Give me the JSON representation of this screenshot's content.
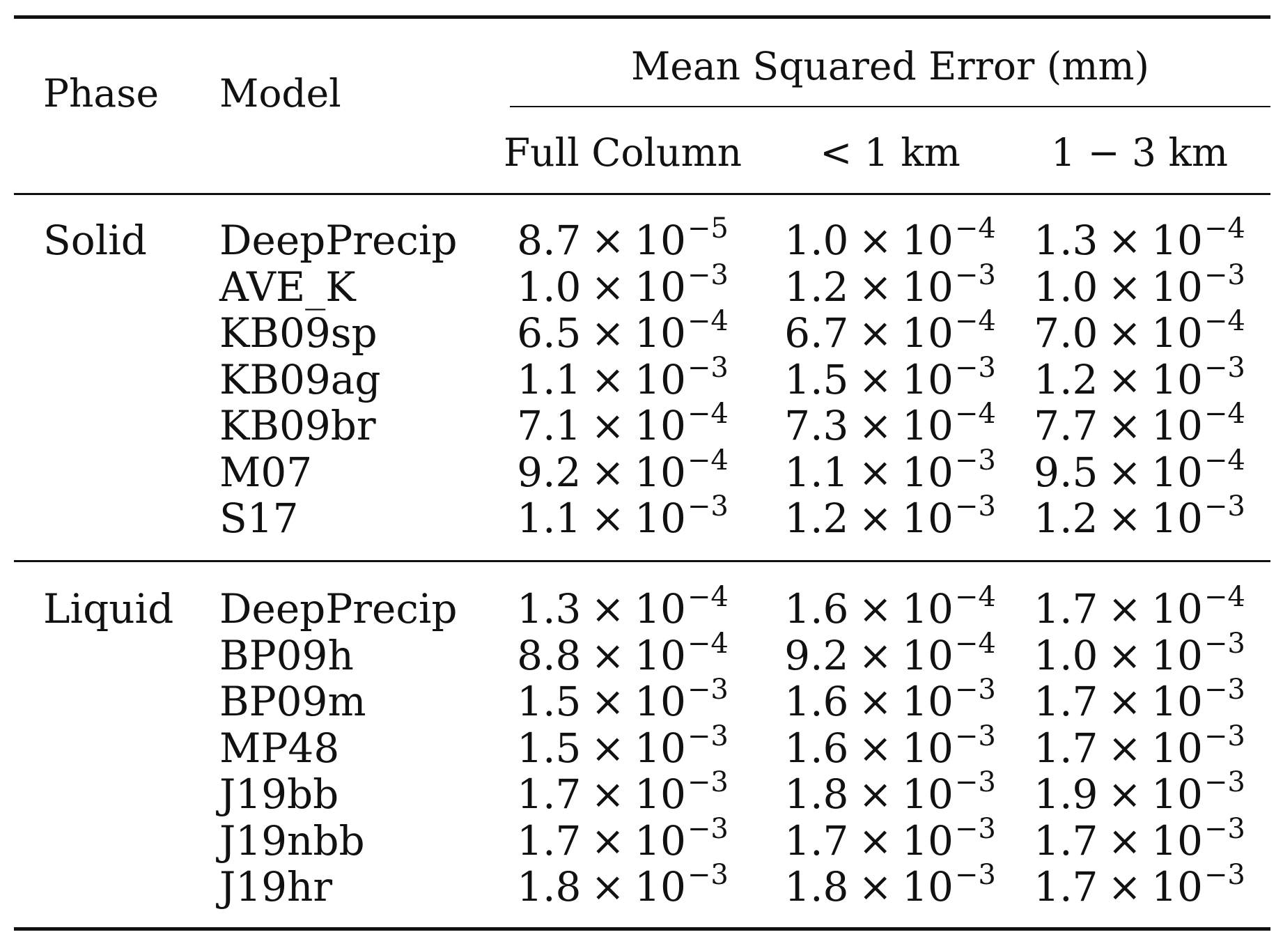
{
  "header": {
    "phase": "Phase",
    "model": "Model",
    "group": "Mean Squared Error (mm)",
    "columns": [
      "Full Column",
      "< 1 km",
      "1 − 3 km"
    ]
  },
  "groups": [
    {
      "phase": "Solid",
      "rows": [
        {
          "model": "DeepPrecip",
          "values": [
            {
              "m": "8.7",
              "e": "−5"
            },
            {
              "m": "1.0",
              "e": "−4"
            },
            {
              "m": "1.3",
              "e": "−4"
            }
          ]
        },
        {
          "model": "AVE_K",
          "values": [
            {
              "m": "1.0",
              "e": "−3"
            },
            {
              "m": "1.2",
              "e": "−3"
            },
            {
              "m": "1.0",
              "e": "−3"
            }
          ]
        },
        {
          "model": "KB09sp",
          "values": [
            {
              "m": "6.5",
              "e": "−4"
            },
            {
              "m": "6.7",
              "e": "−4"
            },
            {
              "m": "7.0",
              "e": "−4"
            }
          ]
        },
        {
          "model": "KB09ag",
          "values": [
            {
              "m": "1.1",
              "e": "−3"
            },
            {
              "m": "1.5",
              "e": "−3"
            },
            {
              "m": "1.2",
              "e": "−3"
            }
          ]
        },
        {
          "model": "KB09br",
          "values": [
            {
              "m": "7.1",
              "e": "−4"
            },
            {
              "m": "7.3",
              "e": "−4"
            },
            {
              "m": "7.7",
              "e": "−4"
            }
          ]
        },
        {
          "model": "M07",
          "values": [
            {
              "m": "9.2",
              "e": "−4"
            },
            {
              "m": "1.1",
              "e": "−3"
            },
            {
              "m": "9.5",
              "e": "−4"
            }
          ]
        },
        {
          "model": "S17",
          "values": [
            {
              "m": "1.1",
              "e": "−3"
            },
            {
              "m": "1.2",
              "e": "−3"
            },
            {
              "m": "1.2",
              "e": "−3"
            }
          ]
        }
      ]
    },
    {
      "phase": "Liquid",
      "rows": [
        {
          "model": "DeepPrecip",
          "values": [
            {
              "m": "1.3",
              "e": "−4"
            },
            {
              "m": "1.6",
              "e": "−4"
            },
            {
              "m": "1.7",
              "e": "−4"
            }
          ]
        },
        {
          "model": "BP09h",
          "values": [
            {
              "m": "8.8",
              "e": "−4"
            },
            {
              "m": "9.2",
              "e": "−4"
            },
            {
              "m": "1.0",
              "e": "−3"
            }
          ]
        },
        {
          "model": "BP09m",
          "values": [
            {
              "m": "1.5",
              "e": "−3"
            },
            {
              "m": "1.6",
              "e": "−3"
            },
            {
              "m": "1.7",
              "e": "−3"
            }
          ]
        },
        {
          "model": "MP48",
          "values": [
            {
              "m": "1.5",
              "e": "−3"
            },
            {
              "m": "1.6",
              "e": "−3"
            },
            {
              "m": "1.7",
              "e": "−3"
            }
          ]
        },
        {
          "model": "J19bb",
          "values": [
            {
              "m": "1.7",
              "e": "−3"
            },
            {
              "m": "1.8",
              "e": "−3"
            },
            {
              "m": "1.9",
              "e": "−3"
            }
          ]
        },
        {
          "model": "J19nbb",
          "values": [
            {
              "m": "1.7",
              "e": "−3"
            },
            {
              "m": "1.7",
              "e": "−3"
            },
            {
              "m": "1.7",
              "e": "−3"
            }
          ]
        },
        {
          "model": "J19hr",
          "values": [
            {
              "m": "1.8",
              "e": "−3"
            },
            {
              "m": "1.8",
              "e": "−3"
            },
            {
              "m": "1.7",
              "e": "−3"
            }
          ]
        }
      ]
    }
  ]
}
